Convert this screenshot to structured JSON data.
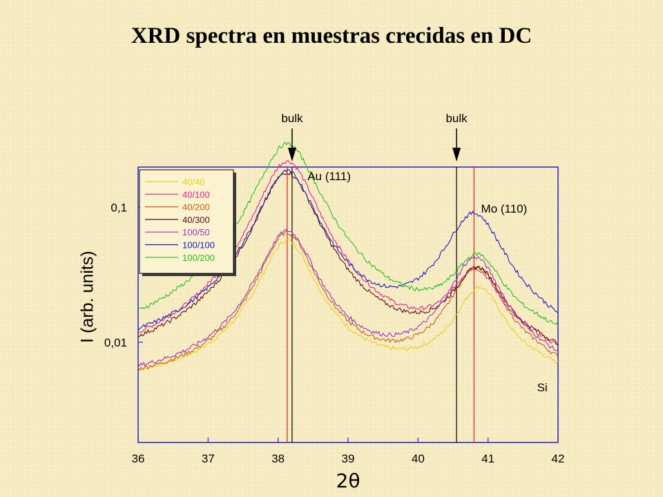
{
  "slide": {
    "title": "XRD spectra en muestras crecidas en DC"
  },
  "chart_data": {
    "type": "line",
    "xlabel": "2θ",
    "ylabel": "I (arb. units)",
    "xlim": [
      36,
      42
    ],
    "ylim": [
      0.0018,
      0.2
    ],
    "yscale": "log",
    "x_ticks": [
      36,
      37,
      38,
      39,
      40,
      41,
      42
    ],
    "x_tick_labels": [
      "36",
      "37",
      "38",
      "39",
      "40",
      "41",
      "42"
    ],
    "y_ticks": [
      0.01,
      0.1
    ],
    "y_tick_labels": [
      "0,01",
      "0,1"
    ],
    "legend_position": "top-left",
    "annotations": [
      {
        "text": "bulk",
        "arrow_x": 38.2
      },
      {
        "text": "bulk",
        "arrow_x": 40.55
      },
      {
        "text": "Au (111)",
        "x": 38.42,
        "y": 0.16
      },
      {
        "text": "Mo (110)",
        "x": 40.9,
        "y": 0.092
      },
      {
        "text": "Si",
        "x": 41.7,
        "y": 0.0043
      }
    ],
    "reference_lines": [
      {
        "x": 38.13,
        "color": "#d02020"
      },
      {
        "x": 38.2,
        "color": "#000000"
      },
      {
        "x": 40.55,
        "color": "#000000"
      },
      {
        "x": 40.8,
        "color": "#d02020"
      }
    ],
    "series": [
      {
        "name": "40/40",
        "color": "#e6d21e",
        "params": {
          "b": 0.0048,
          "au": 0.052,
          "auW": 0.36,
          "mo": 0.02,
          "moW": 0.34,
          "moX": 40.88,
          "si": 0.0004
        }
      },
      {
        "name": "40/100",
        "color": "#e0208c",
        "params": {
          "b": 0.0051,
          "au": 0.216,
          "auW": 0.38,
          "mo": 0.026,
          "moW": 0.36,
          "moX": 40.82,
          "si": 0.0005
        }
      },
      {
        "name": "40/200",
        "color": "#c06018",
        "params": {
          "b": 0.0045,
          "au": 0.06,
          "auW": 0.36,
          "mo": 0.031,
          "moW": 0.36,
          "moX": 40.84,
          "si": 0.0005
        }
      },
      {
        "name": "40/300",
        "color": "#5a0a14",
        "params": {
          "b": 0.0056,
          "au": 0.176,
          "auW": 0.38,
          "mo": 0.027,
          "moW": 0.36,
          "moX": 40.85,
          "si": 0.0005
        }
      },
      {
        "name": "100/50",
        "color": "#9b30c8",
        "params": {
          "b": 0.0047,
          "au": 0.062,
          "auW": 0.37,
          "mo": 0.037,
          "moW": 0.36,
          "moX": 40.82,
          "si": 0.0005
        }
      },
      {
        "name": "100/100",
        "color": "#1818c8",
        "params": {
          "b": 0.0066,
          "au": 0.178,
          "auW": 0.38,
          "mo": 0.081,
          "moW": 0.4,
          "moX": 40.8,
          "si": 0.0006
        }
      },
      {
        "name": "100/200",
        "color": "#20c020",
        "params": {
          "b": 0.0072,
          "au": 0.29,
          "auW": 0.4,
          "mo": 0.032,
          "moW": 0.36,
          "moX": 40.85,
          "si": 0.0006
        }
      }
    ]
  }
}
